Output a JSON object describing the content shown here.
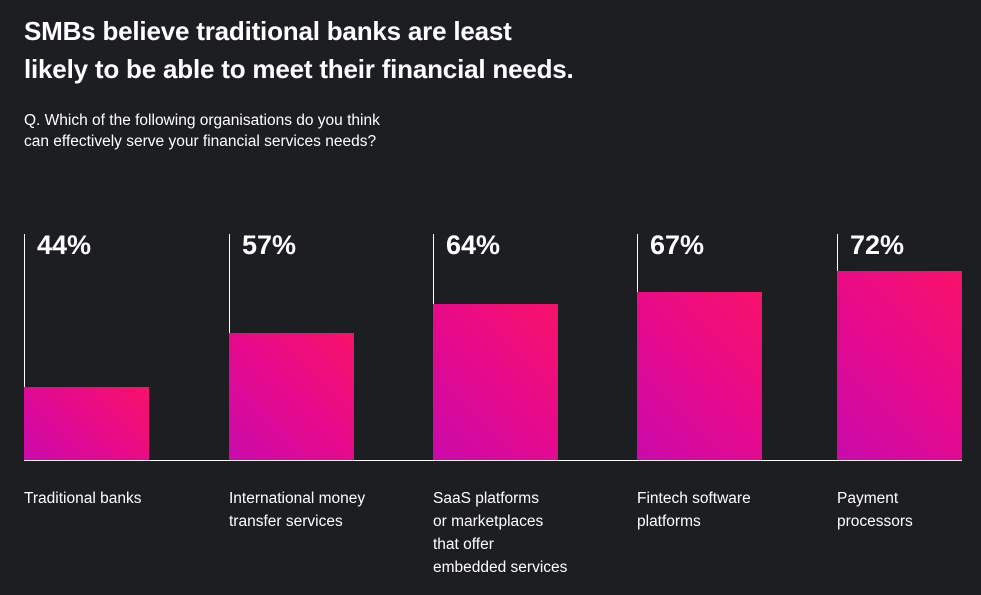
{
  "title_line1": "SMBs believe traditional banks are least",
  "title_line2": "likely to be able to meet their financial needs.",
  "question_line1": "Q. Which of the following organisations do you think",
  "question_line2": "can effectively serve your financial services needs?",
  "chart_data": {
    "type": "bar",
    "categories": [
      "Traditional banks",
      "International money transfer services",
      "SaaS platforms or marketplaces that offer embedded services",
      "Fintech software platforms",
      "Payment processors"
    ],
    "category_lines": [
      [
        "Traditional banks"
      ],
      [
        "International money",
        "transfer services"
      ],
      [
        "SaaS platforms",
        "or marketplaces",
        "that offer",
        "embedded services"
      ],
      [
        "Fintech software",
        "platforms"
      ],
      [
        "Payment",
        "processors"
      ]
    ],
    "values": [
      44,
      57,
      64,
      67,
      72
    ],
    "labels": [
      "44%",
      "57%",
      "64%",
      "67%",
      "72%"
    ],
    "unit": "%",
    "grid": false,
    "colors": {
      "gradient_start": "#c90aac",
      "gradient_end": "#f8126a",
      "background": "#1d1e22"
    }
  }
}
